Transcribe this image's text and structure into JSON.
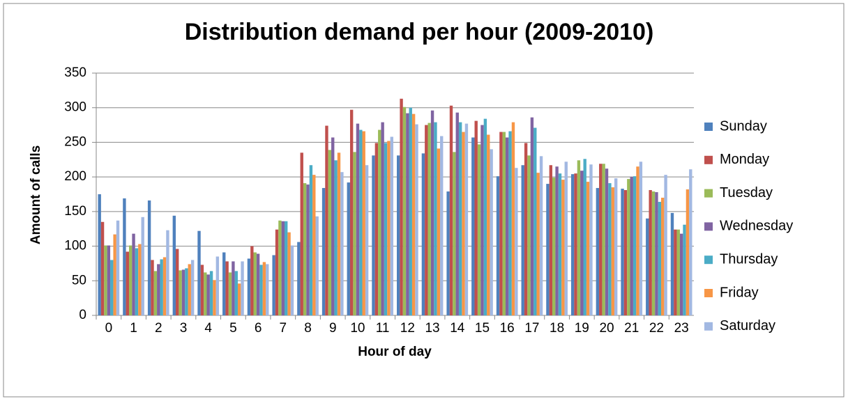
{
  "chart_data": {
    "type": "bar",
    "title": "Distribution demand per hour (2009-2010)",
    "x_label": "Hour of day",
    "y_label": "Amount of calls",
    "categories": [
      "0",
      "1",
      "2",
      "3",
      "4",
      "5",
      "6",
      "7",
      "8",
      "9",
      "10",
      "11",
      "12",
      "13",
      "14",
      "15",
      "16",
      "17",
      "18",
      "19",
      "20",
      "21",
      "22",
      "23"
    ],
    "series": [
      {
        "name": "Sunday",
        "color": "#4f81bd",
        "values": [
          175,
          169,
          166,
          144,
          122,
          91,
          82,
          87,
          106,
          184,
          192,
          231,
          231,
          234,
          179,
          257,
          201,
          217,
          190,
          204,
          184,
          183,
          140,
          148
        ]
      },
      {
        "name": "Monday",
        "color": "#c0504d",
        "values": [
          135,
          92,
          80,
          96,
          73,
          78,
          100,
          124,
          235,
          274,
          297,
          249,
          313,
          275,
          303,
          281,
          265,
          249,
          217,
          205,
          219,
          181,
          181,
          124
        ]
      },
      {
        "name": "Tuesday",
        "color": "#9bbb59",
        "values": [
          101,
          101,
          64,
          65,
          62,
          62,
          91,
          137,
          191,
          239,
          236,
          268,
          301,
          278,
          236,
          247,
          265,
          231,
          199,
          224,
          219,
          197,
          179,
          124
        ]
      },
      {
        "name": "Wednesday",
        "color": "#8064a2",
        "values": [
          101,
          118,
          74,
          66,
          59,
          78,
          89,
          136,
          189,
          257,
          277,
          279,
          292,
          296,
          293,
          275,
          257,
          286,
          215,
          209,
          212,
          200,
          178,
          118
        ]
      },
      {
        "name": "Thursday",
        "color": "#4bacc6",
        "values": [
          80,
          97,
          81,
          68,
          64,
          64,
          73,
          136,
          217,
          224,
          268,
          249,
          300,
          279,
          279,
          284,
          266,
          271,
          205,
          226,
          191,
          201,
          164,
          131
        ]
      },
      {
        "name": "Friday",
        "color": "#f79646",
        "values": [
          117,
          103,
          84,
          74,
          51,
          46,
          77,
          120,
          203,
          235,
          266,
          252,
          291,
          241,
          265,
          261,
          279,
          206,
          196,
          193,
          185,
          215,
          170,
          182
        ]
      },
      {
        "name": "Saturday",
        "color": "#a2b8e2",
        "values": [
          137,
          142,
          123,
          80,
          85,
          78,
          74,
          101,
          143,
          207,
          217,
          258,
          276,
          259,
          277,
          240,
          213,
          230,
          222,
          218,
          198,
          222,
          203,
          211
        ]
      }
    ],
    "ylim": [
      0,
      350
    ],
    "yticks": [
      0,
      50,
      100,
      150,
      200,
      250,
      300,
      350
    ],
    "grid": true,
    "legend": "right"
  }
}
